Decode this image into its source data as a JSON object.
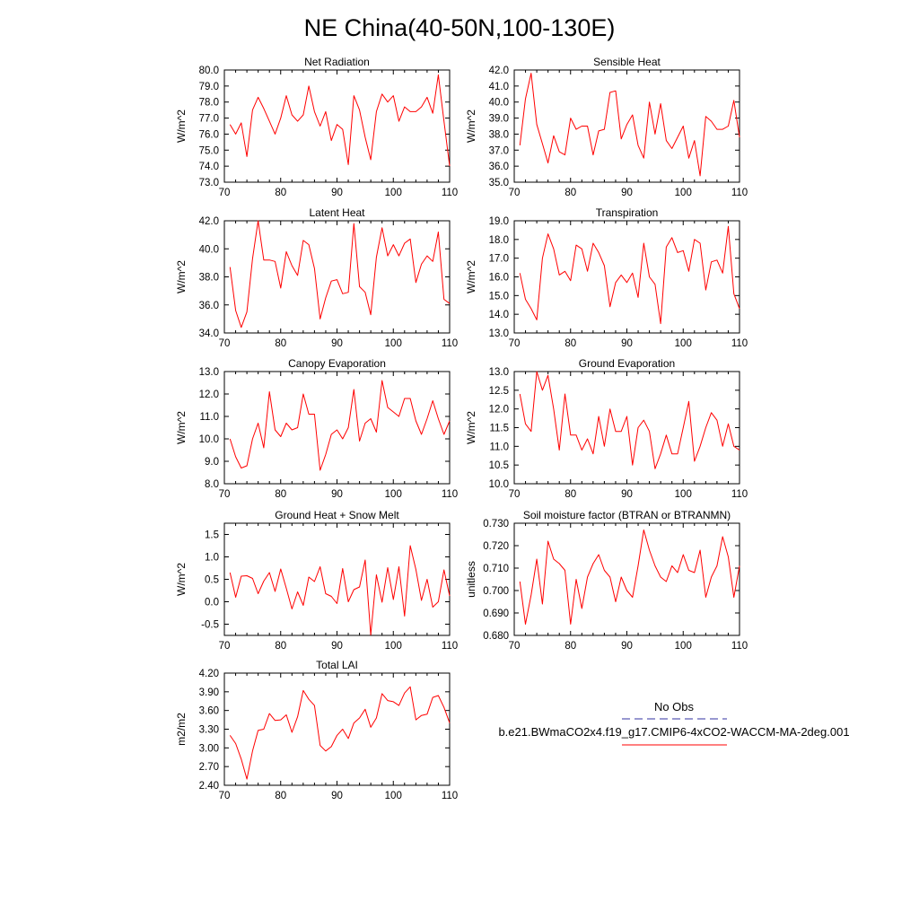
{
  "title": "NE China(40-50N,100-130E)",
  "years": [
    71,
    72,
    73,
    74,
    75,
    76,
    77,
    78,
    79,
    80,
    81,
    82,
    83,
    84,
    85,
    86,
    87,
    88,
    89,
    90,
    91,
    92,
    93,
    94,
    95,
    96,
    97,
    98,
    99,
    100,
    101,
    102,
    103,
    104,
    105,
    106,
    107,
    108,
    109,
    110
  ],
  "chart_data": [
    {
      "type": "line",
      "title": "Net Radiation",
      "ylabel": "W/m^2",
      "xlim": [
        70,
        110
      ],
      "ylim": [
        73.0,
        80.0
      ],
      "yticks": [
        "73.0",
        "74.0",
        "75.0",
        "76.0",
        "77.0",
        "78.0",
        "79.0",
        "80.0"
      ],
      "xticks": [
        "70",
        "80",
        "90",
        "100",
        "110"
      ],
      "series": [
        {
          "name": "b.e21.BWmaCO2x4.f19_g17.CMIP6-4xCO2-WACCM-MA-2deg.001",
          "values": [
            76.6,
            76.0,
            76.7,
            74.6,
            77.5,
            78.3,
            77.6,
            76.8,
            76.0,
            77.0,
            78.4,
            77.2,
            76.8,
            77.2,
            79.0,
            77.4,
            76.5,
            77.4,
            75.6,
            76.6,
            76.3,
            74.1,
            78.4,
            77.5,
            75.8,
            74.4,
            77.4,
            78.5,
            78.0,
            78.4,
            76.8,
            77.7,
            77.4,
            77.4,
            77.7,
            78.3,
            77.3,
            79.7,
            76.8,
            74.0
          ]
        }
      ]
    },
    {
      "type": "line",
      "title": "Sensible Heat",
      "ylabel": "W/m^2",
      "xlim": [
        70,
        110
      ],
      "ylim": [
        35.0,
        42.0
      ],
      "yticks": [
        "35.0",
        "36.0",
        "37.0",
        "38.0",
        "39.0",
        "40.0",
        "41.0",
        "42.0"
      ],
      "xticks": [
        "70",
        "80",
        "90",
        "100",
        "110"
      ],
      "series": [
        {
          "name": "b.e21.BWmaCO2x4.f19_g17.CMIP6-4xCO2-WACCM-MA-2deg.001",
          "values": [
            37.3,
            40.2,
            41.8,
            38.6,
            37.4,
            36.2,
            37.9,
            36.9,
            36.7,
            39.0,
            38.3,
            38.5,
            38.5,
            36.7,
            38.2,
            38.3,
            40.6,
            40.7,
            37.7,
            38.6,
            39.2,
            37.3,
            36.5,
            40.0,
            38.0,
            39.9,
            37.6,
            37.1,
            37.8,
            38.5,
            36.5,
            37.6,
            35.4,
            39.1,
            38.8,
            38.3,
            38.3,
            38.5,
            40.1,
            37.8
          ]
        }
      ]
    },
    {
      "type": "line",
      "title": "Latent Heat",
      "ylabel": "W/m^2",
      "xlim": [
        70,
        110
      ],
      "ylim": [
        34.0,
        42.0
      ],
      "yticks": [
        "34.0",
        "36.0",
        "38.0",
        "40.0",
        "42.0"
      ],
      "xticks": [
        "70",
        "80",
        "90",
        "100",
        "110"
      ],
      "series": [
        {
          "name": "b.e21.BWmaCO2x4.f19_g17.CMIP6-4xCO2-WACCM-MA-2deg.001",
          "values": [
            38.7,
            35.6,
            34.4,
            35.5,
            39.3,
            42.0,
            39.2,
            39.2,
            39.1,
            37.2,
            39.8,
            38.8,
            38.1,
            40.6,
            40.3,
            38.6,
            35.0,
            36.5,
            37.7,
            37.8,
            36.8,
            36.9,
            41.8,
            37.3,
            36.9,
            35.3,
            39.4,
            41.5,
            39.5,
            40.3,
            39.5,
            40.4,
            40.7,
            37.6,
            38.9,
            39.5,
            39.1,
            41.2,
            36.4,
            36.1
          ]
        }
      ]
    },
    {
      "type": "line",
      "title": "Transpiration",
      "ylabel": "W/m^2",
      "xlim": [
        70,
        110
      ],
      "ylim": [
        13.0,
        19.0
      ],
      "yticks": [
        "13.0",
        "14.0",
        "15.0",
        "16.0",
        "17.0",
        "18.0",
        "19.0"
      ],
      "xticks": [
        "70",
        "80",
        "90",
        "100",
        "110"
      ],
      "series": [
        {
          "name": "b.e21.BWmaCO2x4.f19_g17.CMIP6-4xCO2-WACCM-MA-2deg.001",
          "values": [
            16.2,
            14.8,
            14.3,
            13.7,
            17.0,
            18.3,
            17.5,
            16.1,
            16.3,
            15.8,
            17.7,
            17.5,
            16.3,
            17.8,
            17.3,
            16.6,
            14.4,
            15.7,
            16.1,
            15.7,
            16.2,
            14.9,
            17.8,
            16.0,
            15.6,
            13.5,
            17.6,
            18.1,
            17.3,
            17.4,
            16.3,
            18.0,
            17.8,
            15.3,
            16.8,
            16.9,
            16.2,
            18.7,
            15.1,
            14.3
          ]
        }
      ]
    },
    {
      "type": "line",
      "title": "Canopy Evaporation",
      "ylabel": "W/m^2",
      "xlim": [
        70,
        110
      ],
      "ylim": [
        8.0,
        13.0
      ],
      "yticks": [
        "8.0",
        "9.0",
        "10.0",
        "11.0",
        "12.0",
        "13.0"
      ],
      "xticks": [
        "70",
        "80",
        "90",
        "100",
        "110"
      ],
      "series": [
        {
          "name": "b.e21.BWmaCO2x4.f19_g17.CMIP6-4xCO2-WACCM-MA-2deg.001",
          "values": [
            10.0,
            9.2,
            8.7,
            8.8,
            10.0,
            10.7,
            9.6,
            12.1,
            10.4,
            10.1,
            10.7,
            10.4,
            10.5,
            12.0,
            11.1,
            11.1,
            8.6,
            9.3,
            10.2,
            10.4,
            10.0,
            10.5,
            12.2,
            9.9,
            10.7,
            10.9,
            10.3,
            12.6,
            11.4,
            11.2,
            11.0,
            11.8,
            11.8,
            10.8,
            10.2,
            10.9,
            11.7,
            10.9,
            10.2,
            10.8
          ]
        }
      ]
    },
    {
      "type": "line",
      "title": "Ground Evaporation",
      "ylabel": "W/m^2",
      "xlim": [
        70,
        110
      ],
      "ylim": [
        10.0,
        13.0
      ],
      "yticks": [
        "10.0",
        "10.5",
        "11.0",
        "11.5",
        "12.0",
        "12.5",
        "13.0"
      ],
      "xticks": [
        "70",
        "80",
        "90",
        "100",
        "110"
      ],
      "series": [
        {
          "name": "b.e21.BWmaCO2x4.f19_g17.CMIP6-4xCO2-WACCM-MA-2deg.001",
          "values": [
            12.4,
            11.6,
            11.4,
            13.0,
            12.5,
            12.9,
            12.0,
            10.9,
            12.4,
            11.3,
            11.3,
            10.9,
            11.2,
            10.8,
            11.8,
            11.0,
            12.0,
            11.4,
            11.4,
            11.8,
            10.5,
            11.5,
            11.7,
            11.4,
            10.4,
            10.8,
            11.3,
            10.8,
            10.8,
            11.5,
            12.2,
            10.6,
            11.0,
            11.5,
            11.9,
            11.7,
            11.0,
            11.6,
            11.0,
            10.9
          ]
        }
      ]
    },
    {
      "type": "line",
      "title": "Ground Heat + Snow Melt",
      "ylabel": "W/m^2",
      "xlim": [
        70,
        110
      ],
      "ylim": [
        -0.75,
        1.75
      ],
      "yticks": [
        "-0.5",
        "0.0",
        "0.5",
        "1.0",
        "1.5"
      ],
      "xticks": [
        "70",
        "80",
        "90",
        "100",
        "110"
      ],
      "series": [
        {
          "name": "b.e21.BWmaCO2x4.f19_g17.CMIP6-4xCO2-WACCM-MA-2deg.001",
          "values": [
            0.65,
            0.1,
            0.57,
            0.58,
            0.52,
            0.18,
            0.46,
            0.65,
            0.23,
            0.73,
            0.3,
            -0.16,
            0.22,
            -0.08,
            0.55,
            0.45,
            0.78,
            0.18,
            0.12,
            -0.04,
            0.74,
            0.0,
            0.27,
            0.33,
            0.93,
            -0.74,
            0.6,
            -0.01,
            0.76,
            0.05,
            0.78,
            -0.32,
            1.25,
            0.72,
            0.03,
            0.5,
            -0.12,
            0.0,
            0.71,
            0.13
          ]
        }
      ]
    },
    {
      "type": "line",
      "title": "Soil moisture factor (BTRAN or BTRANMN)",
      "ylabel": "unitless",
      "xlim": [
        70,
        110
      ],
      "ylim": [
        0.68,
        0.73
      ],
      "yticks": [
        "0.680",
        "0.690",
        "0.700",
        "0.710",
        "0.720",
        "0.730"
      ],
      "xticks": [
        "70",
        "80",
        "90",
        "100",
        "110"
      ],
      "series": [
        {
          "name": "b.e21.BWmaCO2x4.f19_g17.CMIP6-4xCO2-WACCM-MA-2deg.001",
          "values": [
            0.704,
            0.685,
            0.698,
            0.714,
            0.694,
            0.722,
            0.714,
            0.712,
            0.709,
            0.685,
            0.705,
            0.692,
            0.706,
            0.712,
            0.716,
            0.709,
            0.706,
            0.695,
            0.706,
            0.7,
            0.697,
            0.711,
            0.727,
            0.718,
            0.711,
            0.706,
            0.704,
            0.711,
            0.708,
            0.716,
            0.709,
            0.708,
            0.718,
            0.697,
            0.706,
            0.711,
            0.724,
            0.715,
            0.697,
            0.711
          ]
        }
      ]
    },
    {
      "type": "line",
      "title": "Total LAI",
      "ylabel": "m2/m2",
      "xlim": [
        70,
        110
      ],
      "ylim": [
        2.4,
        4.2
      ],
      "yticks": [
        "2.40",
        "2.70",
        "3.00",
        "3.30",
        "3.60",
        "3.90",
        "4.20"
      ],
      "xticks": [
        "70",
        "80",
        "90",
        "100",
        "110"
      ],
      "series": [
        {
          "name": "b.e21.BWmaCO2x4.f19_g17.CMIP6-4xCO2-WACCM-MA-2deg.001",
          "values": [
            3.2,
            3.07,
            2.82,
            2.5,
            2.95,
            3.28,
            3.3,
            3.55,
            3.44,
            3.45,
            3.53,
            3.25,
            3.5,
            3.92,
            3.78,
            3.68,
            3.04,
            2.95,
            3.02,
            3.2,
            3.3,
            3.15,
            3.4,
            3.48,
            3.62,
            3.33,
            3.48,
            3.87,
            3.76,
            3.74,
            3.68,
            3.88,
            3.98,
            3.45,
            3.52,
            3.54,
            3.81,
            3.84,
            3.65,
            3.4
          ]
        }
      ]
    }
  ],
  "legend": {
    "obs_label": "No Obs",
    "model_label": "b.e21.BWmaCO2x4.f19_g17.CMIP6-4xCO2-WACCM-MA-2deg.001",
    "obs_color": "#3030a0",
    "model_color": "#ff0000"
  },
  "colors": {
    "line": "#ff0000",
    "axis": "#000000"
  }
}
